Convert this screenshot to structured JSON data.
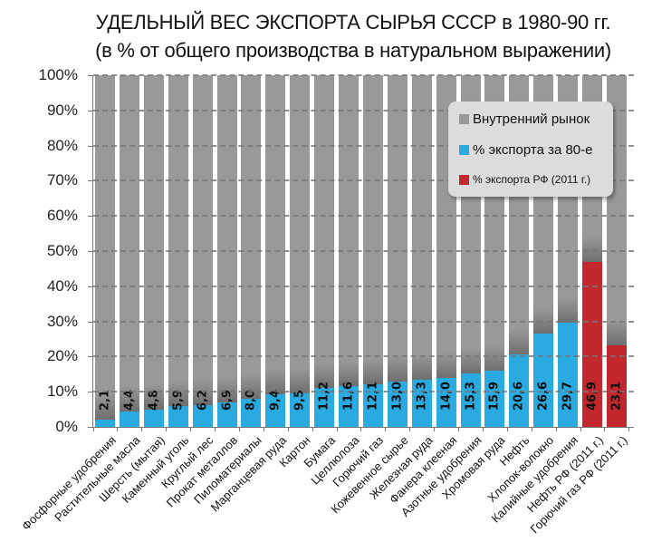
{
  "title": {
    "line1": "УДЕЛЬНЫЙ ВЕС ЭКСПОРТА СЫРЬЯ СССР в 1980-90 гг.",
    "line2": "(в % от общего производства в натуральном выражении)"
  },
  "colors": {
    "domestic": "#999999",
    "export_80s": "#29abe2",
    "export_rf_2011": "#c1272d"
  },
  "legend": {
    "items": [
      {
        "label": "Внутренний рынок",
        "color": "#999999"
      },
      {
        "label": "% экспорта за 80-е",
        "color": "#29abe2"
      },
      {
        "label": "% экспорта РФ (2011 г.)",
        "color": "#c1272d"
      }
    ]
  },
  "y_ticks": [
    "0%",
    "10%",
    "20%",
    "30%",
    "40%",
    "50%",
    "60%",
    "70%",
    "80%",
    "90%",
    "100%"
  ],
  "chart_data": {
    "type": "bar",
    "stacked": true,
    "title": "УДЕЛЬНЫЙ ВЕС ЭКСПОРТА СЫРЬЯ СССР в 1980-90 гг. (в % от общего производства в натуральном выражении)",
    "xlabel": "",
    "ylabel": "",
    "ylim": [
      0,
      100
    ],
    "y_tick_labels": [
      "0%",
      "10%",
      "20%",
      "30%",
      "40%",
      "50%",
      "60%",
      "70%",
      "80%",
      "90%",
      "100%"
    ],
    "grid": "horizontal dashed",
    "legend_position": "upper right (inside)",
    "categories": [
      "Фосфорные удобрения",
      "Растительные масла",
      "Шерсть (мытая)",
      "Каменный уголь",
      "Круглый лес",
      "Прокат металлов",
      "Пиломатериалы",
      "Марганцевая руда",
      "Картон",
      "Бумага",
      "Целлюлоза",
      "Горючий газ",
      "Кожевенное сырье",
      "Железная руда",
      "Фанера клееная",
      "Азотные удобрения",
      "Хромовая руда",
      "Нефть",
      "Хлопок-волокно",
      "Калийные удобрения",
      "Нефть РФ (2011 г.)",
      "Горючий газ РФ (2011 г.)"
    ],
    "value_labels": [
      "2,1",
      "4,4",
      "4,8",
      "5,9",
      "6,2",
      "6,9",
      "8,0",
      "9,4",
      "9,5",
      "11,2",
      "11,6",
      "12,1",
      "13,0",
      "13,3",
      "14,0",
      "15,3",
      "15,9",
      "20,6",
      "26,6",
      "29,7",
      "46,9",
      "23,1"
    ],
    "series": [
      {
        "name": "% экспорта за 80-е",
        "color": "#29abe2",
        "values": [
          2.1,
          4.4,
          4.8,
          5.9,
          6.2,
          6.9,
          8.0,
          9.4,
          9.5,
          11.2,
          11.6,
          12.1,
          13.0,
          13.3,
          14.0,
          15.3,
          15.9,
          20.6,
          26.6,
          29.7,
          null,
          null
        ]
      },
      {
        "name": "% экспорта РФ (2011 г.)",
        "color": "#c1272d",
        "values": [
          null,
          null,
          null,
          null,
          null,
          null,
          null,
          null,
          null,
          null,
          null,
          null,
          null,
          null,
          null,
          null,
          null,
          null,
          null,
          null,
          46.9,
          23.1
        ]
      },
      {
        "name": "Внутренний рынок",
        "color": "#999999",
        "values": [
          97.9,
          95.6,
          95.2,
          94.1,
          93.8,
          93.1,
          92.0,
          90.6,
          90.5,
          88.8,
          88.4,
          87.9,
          87.0,
          86.7,
          86.0,
          84.7,
          84.1,
          79.4,
          73.4,
          70.3,
          53.1,
          76.9
        ]
      }
    ]
  }
}
